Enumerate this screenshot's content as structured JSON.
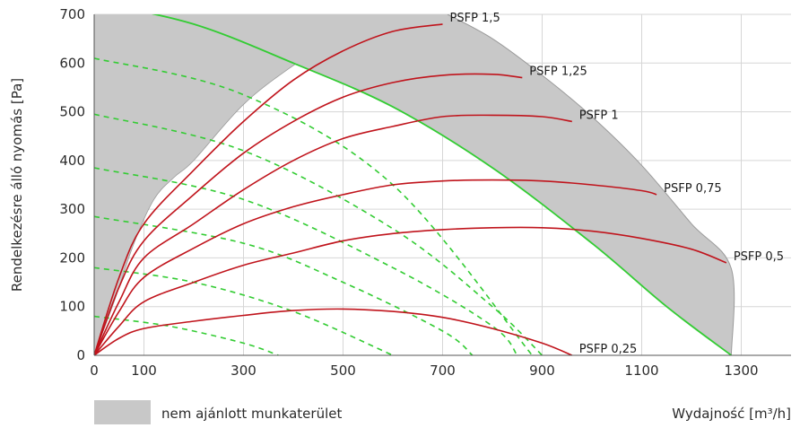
{
  "chart_data": {
    "type": "line",
    "title": "",
    "xlabel": "Wydajność [m³/h]",
    "ylabel": "Rendelkezésre álló nyomás [Pa]",
    "xlim": [
      0,
      1400
    ],
    "ylim": [
      0,
      700
    ],
    "x_ticks": [
      0,
      100,
      300,
      500,
      700,
      900,
      1100,
      1300
    ],
    "y_ticks": [
      0,
      100,
      200,
      300,
      400,
      500,
      600,
      700
    ],
    "grid": true,
    "legend": {
      "position": "bottom-left",
      "entries": [
        {
          "label": "nem ajánlott munkaterület",
          "color": "#c8c8c8"
        }
      ]
    },
    "colors": {
      "restricted_area": "#c8c8c8",
      "psfp_curve": "#c0141c",
      "limit_curve": "#33cc33",
      "system_curves": "#33cc33"
    },
    "restricted_area_boundary": {
      "upper_left": [
        [
          0,
          0
        ],
        [
          40,
          110
        ],
        [
          80,
          230
        ],
        [
          120,
          320
        ],
        [
          160,
          365
        ],
        [
          200,
          400
        ],
        [
          300,
          515
        ],
        [
          400,
          595
        ],
        [
          500,
          660
        ],
        [
          580,
          700
        ]
      ],
      "right_edge": [
        [
          710,
          700
        ],
        [
          800,
          650
        ],
        [
          900,
          575
        ],
        [
          1000,
          490
        ],
        [
          1100,
          390
        ],
        [
          1200,
          270
        ],
        [
          1280,
          178
        ],
        [
          1280,
          0
        ]
      ]
    },
    "limit_curve": [
      [
        0,
        725
      ],
      [
        200,
        680
      ],
      [
        400,
        600
      ],
      [
        600,
        510
      ],
      [
        800,
        385
      ],
      [
        1000,
        230
      ],
      [
        1150,
        100
      ],
      [
        1280,
        0
      ]
    ],
    "series": [
      {
        "name": "PSFP 1,5",
        "label": "PSFP 1,5",
        "points": [
          [
            0,
            0
          ],
          [
            50,
            160
          ],
          [
            100,
            270
          ],
          [
            200,
            380
          ],
          [
            300,
            480
          ],
          [
            400,
            565
          ],
          [
            500,
            625
          ],
          [
            600,
            665
          ],
          [
            700,
            680
          ]
        ]
      },
      {
        "name": "PSFP 1,25",
        "label": "PSFP 1,25",
        "points": [
          [
            0,
            0
          ],
          [
            50,
            140
          ],
          [
            100,
            235
          ],
          [
            200,
            330
          ],
          [
            300,
            415
          ],
          [
            400,
            480
          ],
          [
            500,
            530
          ],
          [
            600,
            560
          ],
          [
            700,
            575
          ],
          [
            800,
            577
          ],
          [
            860,
            570
          ]
        ]
      },
      {
        "name": "PSFP 1",
        "label": "PSFP 1",
        "points": [
          [
            0,
            0
          ],
          [
            50,
            110
          ],
          [
            100,
            200
          ],
          [
            200,
            270
          ],
          [
            300,
            340
          ],
          [
            400,
            400
          ],
          [
            500,
            445
          ],
          [
            600,
            470
          ],
          [
            700,
            490
          ],
          [
            800,
            493
          ],
          [
            900,
            490
          ],
          [
            960,
            480
          ]
        ]
      },
      {
        "name": "PSFP 0,75",
        "label": "PSFP 0,75",
        "points": [
          [
            0,
            0
          ],
          [
            50,
            90
          ],
          [
            100,
            160
          ],
          [
            200,
            220
          ],
          [
            300,
            270
          ],
          [
            400,
            305
          ],
          [
            500,
            330
          ],
          [
            600,
            350
          ],
          [
            700,
            358
          ],
          [
            800,
            360
          ],
          [
            900,
            358
          ],
          [
            1000,
            350
          ],
          [
            1100,
            338
          ],
          [
            1130,
            330
          ]
        ]
      },
      {
        "name": "PSFP 0,5",
        "label": "PSFP 0,5",
        "points": [
          [
            0,
            0
          ],
          [
            50,
            60
          ],
          [
            100,
            110
          ],
          [
            200,
            150
          ],
          [
            300,
            185
          ],
          [
            400,
            210
          ],
          [
            500,
            235
          ],
          [
            600,
            250
          ],
          [
            700,
            258
          ],
          [
            800,
            262
          ],
          [
            900,
            262
          ],
          [
            1000,
            255
          ],
          [
            1100,
            240
          ],
          [
            1200,
            218
          ],
          [
            1270,
            190
          ]
        ]
      },
      {
        "name": "PSFP 0,25",
        "label": "PSFP 0,25",
        "points": [
          [
            0,
            0
          ],
          [
            50,
            35
          ],
          [
            100,
            55
          ],
          [
            200,
            70
          ],
          [
            300,
            82
          ],
          [
            400,
            92
          ],
          [
            500,
            95
          ],
          [
            600,
            90
          ],
          [
            700,
            78
          ],
          [
            800,
            55
          ],
          [
            900,
            25
          ],
          [
            960,
            0
          ]
        ]
      }
    ],
    "system_curves": [
      {
        "points": [
          [
            0,
            610
          ],
          [
            300,
            535
          ],
          [
            600,
            350
          ],
          [
            880,
            0
          ]
        ]
      },
      {
        "points": [
          [
            0,
            495
          ],
          [
            300,
            420
          ],
          [
            600,
            260
          ],
          [
            800,
            100
          ],
          [
            900,
            0
          ]
        ]
      },
      {
        "points": [
          [
            0,
            385
          ],
          [
            300,
            320
          ],
          [
            600,
            180
          ],
          [
            800,
            60
          ],
          [
            850,
            0
          ]
        ]
      },
      {
        "points": [
          [
            0,
            285
          ],
          [
            300,
            230
          ],
          [
            500,
            150
          ],
          [
            700,
            50
          ],
          [
            760,
            0
          ]
        ]
      },
      {
        "points": [
          [
            0,
            180
          ],
          [
            200,
            150
          ],
          [
            400,
            90
          ],
          [
            600,
            0
          ]
        ]
      },
      {
        "points": [
          [
            0,
            80
          ],
          [
            150,
            60
          ],
          [
            300,
            25
          ],
          [
            370,
            0
          ]
        ]
      }
    ]
  }
}
